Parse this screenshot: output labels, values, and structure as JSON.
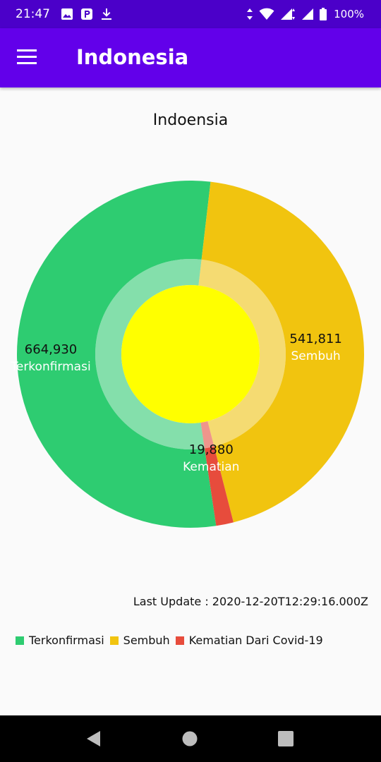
{
  "status_bar": {
    "time": "21:47",
    "battery": "100%"
  },
  "app_bar": {
    "title": "Indonesia"
  },
  "chart_data": {
    "type": "pie",
    "title": "Indoensia",
    "slices": [
      {
        "name": "Terkonfirmasi",
        "value": 664930,
        "value_label": "664,930",
        "color": "#2ecc71"
      },
      {
        "name": "Sembuh",
        "value": 541811,
        "value_label": "541,811",
        "color": "#f1c40f"
      },
      {
        "name": "Kematian",
        "value": 19880,
        "value_label": "19,880",
        "color": "#e74c3c"
      }
    ],
    "center_color": "#ffff00",
    "legend": [
      {
        "label": "Terkonfirmasi",
        "color": "#2ecc71"
      },
      {
        "label": "Sembuh",
        "color": "#f1c40f"
      },
      {
        "label": "Kematian",
        "color": "#e74c3c"
      }
    ],
    "legend_suffix": "Dari Covid-19"
  },
  "last_update": "Last Update : 2020-12-20T12:29:16.000Z"
}
